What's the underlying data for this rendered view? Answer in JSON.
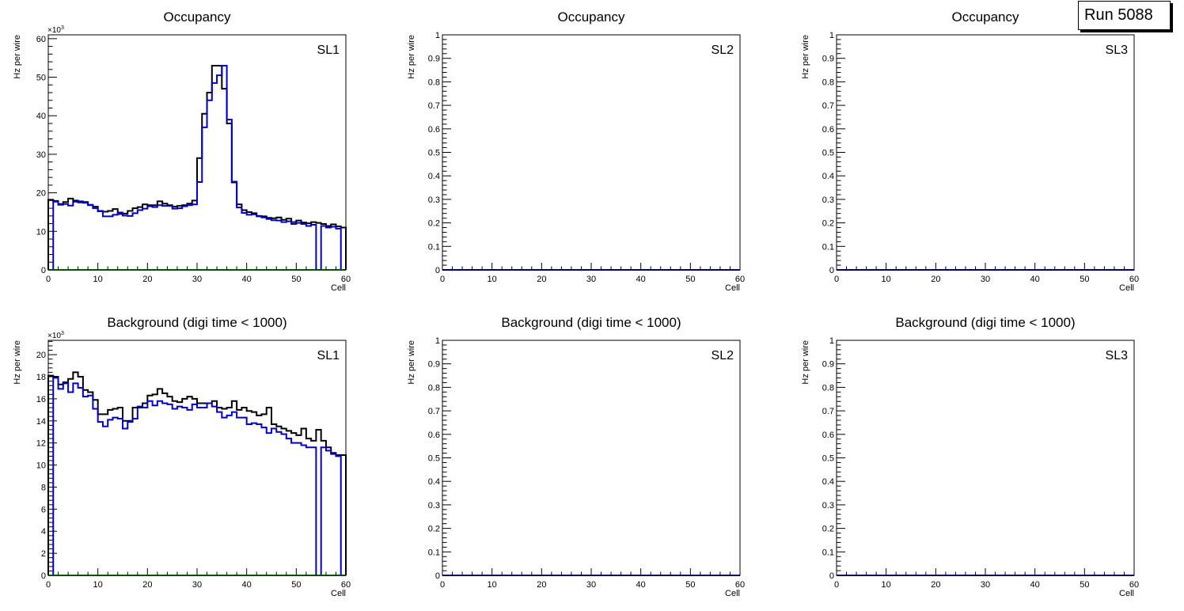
{
  "run_label": "Run 5088",
  "colors": {
    "series1": "#000000",
    "series2": "#0000cc",
    "series3": "#00aa00",
    "frame": "#000000"
  },
  "chart_data": [
    {
      "type": "step",
      "title": "Occupancy",
      "label": "SL1",
      "xlabel": "Cell",
      "ylabel": "Hz per wire",
      "xlim": [
        0,
        60
      ],
      "ylim": [
        0,
        61
      ],
      "ymultiplier": "×10",
      "ymultiplier_exp": "3",
      "xticks": [
        "0",
        "10",
        "20",
        "30",
        "40",
        "50",
        "60"
      ],
      "yticks": [
        0,
        10,
        20,
        30,
        40,
        50,
        60
      ],
      "ytick_labels": [
        "0",
        "10",
        "20",
        "30",
        "40",
        "50",
        "60"
      ],
      "series": [
        {
          "name": "series-black",
          "values": [
            18.2,
            17.9,
            17.1,
            17.6,
            18.5,
            18,
            17.5,
            17.6,
            16.8,
            16.4,
            15.2,
            15.1,
            15.3,
            15.8,
            14.5,
            14.6,
            15.3,
            16,
            16.3,
            17,
            16.8,
            16.8,
            17.8,
            17.2,
            16.8,
            16.4,
            16.6,
            16.8,
            17.2,
            18,
            29,
            40.5,
            46,
            53,
            53,
            47,
            38,
            22.7,
            17,
            15.5,
            15,
            14.7,
            14,
            13.9,
            13.5,
            13.4,
            13.6,
            13,
            13.3,
            12.4,
            12.8,
            12.3,
            12.1,
            12.4,
            12.2,
            11.9,
            11.4,
            11.8,
            11.3,
            11
          ]
        },
        {
          "name": "series-blue",
          "values": [
            0,
            17.7,
            16.9,
            17.1,
            16.7,
            17.7,
            17.8,
            17.4,
            16.9,
            16,
            15.3,
            13.9,
            13.9,
            14.3,
            14.9,
            14.1,
            14,
            14.7,
            15.5,
            15.9,
            16.5,
            16.3,
            16.8,
            16.6,
            16.6,
            15.9,
            16,
            16.5,
            16.8,
            17,
            22.8,
            37,
            44,
            48.5,
            50.5,
            53,
            39,
            22.9,
            16.2,
            14.8,
            14.3,
            14.4,
            13.9,
            13.6,
            13.2,
            12.9,
            12.8,
            12.4,
            12.6,
            11.9,
            12.2,
            11.9,
            11.4,
            11.7,
            0,
            11.4,
            11,
            11.2,
            10.7,
            0
          ]
        },
        {
          "name": "series-green",
          "values": [
            0,
            0,
            0,
            0,
            0,
            0,
            0,
            0,
            0,
            0,
            0,
            0,
            0,
            0,
            0,
            0,
            0,
            0,
            0,
            0,
            0,
            0,
            0,
            0,
            0,
            0,
            0,
            0,
            0,
            0,
            0,
            0,
            0,
            0,
            0,
            0,
            0,
            0,
            0,
            0,
            0,
            0,
            0,
            0,
            0,
            0,
            0,
            0,
            0,
            0,
            0,
            0,
            0,
            0,
            0,
            0,
            0,
            0,
            0,
            0
          ]
        }
      ]
    },
    {
      "type": "step",
      "title": "Occupancy",
      "label": "SL2",
      "xlabel": "Cell",
      "ylabel": "Hz per wire",
      "xlim": [
        0,
        60
      ],
      "ylim": [
        0,
        1
      ],
      "xticks": [
        "0",
        "10",
        "20",
        "30",
        "40",
        "50",
        "60"
      ],
      "yticks": [
        0,
        0.1,
        0.2,
        0.3,
        0.4,
        0.5,
        0.6,
        0.7,
        0.8,
        0.9,
        1
      ],
      "ytick_labels": [
        "0",
        "0.1",
        "0.2",
        "0.3",
        "0.4",
        "0.5",
        "0.6",
        "0.7",
        "0.8",
        "0.9",
        "1"
      ],
      "series": [
        {
          "name": "series-blue",
          "values": [
            0,
            0,
            0,
            0,
            0,
            0,
            0,
            0,
            0,
            0,
            0,
            0,
            0,
            0,
            0,
            0,
            0,
            0,
            0,
            0,
            0,
            0,
            0,
            0,
            0,
            0,
            0,
            0,
            0,
            0,
            0,
            0,
            0,
            0,
            0,
            0,
            0,
            0,
            0,
            0,
            0,
            0,
            0,
            0,
            0,
            0,
            0,
            0,
            0,
            0,
            0,
            0,
            0,
            0,
            0,
            0,
            0,
            0,
            0,
            0
          ]
        }
      ]
    },
    {
      "type": "step",
      "title": "Occupancy",
      "label": "SL3",
      "xlabel": "Cell",
      "ylabel": "Hz per wire",
      "xlim": [
        0,
        60
      ],
      "ylim": [
        0,
        1
      ],
      "xticks": [
        "0",
        "10",
        "20",
        "30",
        "40",
        "50",
        "60"
      ],
      "yticks": [
        0,
        0.1,
        0.2,
        0.3,
        0.4,
        0.5,
        0.6,
        0.7,
        0.8,
        0.9,
        1
      ],
      "ytick_labels": [
        "0",
        "0.1",
        "0.2",
        "0.3",
        "0.4",
        "0.5",
        "0.6",
        "0.7",
        "0.8",
        "0.9",
        "1"
      ],
      "series": [
        {
          "name": "series-blue",
          "values": [
            0,
            0,
            0,
            0,
            0,
            0,
            0,
            0,
            0,
            0,
            0,
            0,
            0,
            0,
            0,
            0,
            0,
            0,
            0,
            0,
            0,
            0,
            0,
            0,
            0,
            0,
            0,
            0,
            0,
            0,
            0,
            0,
            0,
            0,
            0,
            0,
            0,
            0,
            0,
            0,
            0,
            0,
            0,
            0,
            0,
            0,
            0,
            0,
            0,
            0,
            0,
            0,
            0,
            0,
            0,
            0,
            0,
            0,
            0,
            0
          ]
        }
      ]
    },
    {
      "type": "step",
      "title": "Background (digi time < 1000)",
      "label": "SL1",
      "xlabel": "Cell",
      "ylabel": "Hz per wire",
      "xlim": [
        0,
        60
      ],
      "ylim": [
        0,
        21.3
      ],
      "ymultiplier": "×10",
      "ymultiplier_exp": "3",
      "xticks": [
        "0",
        "10",
        "20",
        "30",
        "40",
        "50",
        "60"
      ],
      "yticks": [
        0,
        2,
        4,
        6,
        8,
        10,
        12,
        14,
        16,
        18,
        20
      ],
      "ytick_labels": [
        "0",
        "2",
        "4",
        "6",
        "8",
        "10",
        "12",
        "14",
        "16",
        "18",
        "20"
      ],
      "series": [
        {
          "name": "series-black",
          "values": [
            18.1,
            18,
            17.3,
            17.5,
            17.8,
            18.4,
            18,
            16.8,
            16.6,
            15.9,
            14.6,
            14.6,
            15,
            15.1,
            15.2,
            14,
            14,
            15.2,
            15.2,
            15.6,
            16.3,
            16.4,
            16.9,
            16.5,
            16.2,
            15.8,
            15.7,
            16,
            16.2,
            16,
            15.6,
            15.6,
            15.6,
            15.8,
            15.2,
            15.1,
            15.2,
            15.8,
            15,
            15.2,
            14.9,
            14.8,
            14.5,
            14.6,
            15.2,
            13.7,
            13.5,
            13.3,
            13.1,
            12.9,
            12.7,
            13.3,
            12.4,
            12.2,
            13.2,
            12.2,
            11.6,
            11.1,
            10.9,
            10.9
          ]
        },
        {
          "name": "series-blue",
          "values": [
            0,
            17.9,
            16.9,
            17.4,
            16.6,
            17.4,
            17,
            16.2,
            16.3,
            15.1,
            13.9,
            13.5,
            14.1,
            14.3,
            14.2,
            13.3,
            13.9,
            14.2,
            15.3,
            15.2,
            15.8,
            15.4,
            15.8,
            15.6,
            15.5,
            15.1,
            15.3,
            15.2,
            15,
            15.5,
            15.2,
            15.2,
            15.6,
            15.3,
            14.8,
            14.3,
            14.5,
            14.8,
            14.3,
            14.3,
            13.7,
            13.8,
            13.7,
            13.4,
            12.9,
            13.3,
            13,
            12.8,
            12.4,
            12,
            12,
            11.8,
            11.6,
            11.6,
            0,
            11.6,
            11.3,
            11,
            10.8,
            0
          ]
        },
        {
          "name": "series-green",
          "values": [
            0,
            0,
            0,
            0,
            0,
            0,
            0,
            0,
            0,
            0,
            0,
            0,
            0,
            0,
            0,
            0,
            0,
            0,
            0,
            0,
            0,
            0,
            0,
            0,
            0,
            0,
            0,
            0,
            0,
            0,
            0,
            0,
            0,
            0,
            0,
            0,
            0,
            0,
            0,
            0,
            0,
            0,
            0,
            0,
            0,
            0,
            0,
            0,
            0,
            0,
            0,
            0,
            0,
            0,
            0,
            0,
            0,
            0,
            0,
            0
          ]
        }
      ]
    },
    {
      "type": "step",
      "title": "Background (digi time < 1000)",
      "label": "SL2",
      "xlabel": "Cell",
      "ylabel": "Hz per wire",
      "xlim": [
        0,
        60
      ],
      "ylim": [
        0,
        1
      ],
      "xticks": [
        "0",
        "10",
        "20",
        "30",
        "40",
        "50",
        "60"
      ],
      "yticks": [
        0,
        0.1,
        0.2,
        0.3,
        0.4,
        0.5,
        0.6,
        0.7,
        0.8,
        0.9,
        1
      ],
      "ytick_labels": [
        "0",
        "0.1",
        "0.2",
        "0.3",
        "0.4",
        "0.5",
        "0.6",
        "0.7",
        "0.8",
        "0.9",
        "1"
      ],
      "series": [
        {
          "name": "series-blue",
          "values": [
            0,
            0,
            0,
            0,
            0,
            0,
            0,
            0,
            0,
            0,
            0,
            0,
            0,
            0,
            0,
            0,
            0,
            0,
            0,
            0,
            0,
            0,
            0,
            0,
            0,
            0,
            0,
            0,
            0,
            0,
            0,
            0,
            0,
            0,
            0,
            0,
            0,
            0,
            0,
            0,
            0,
            0,
            0,
            0,
            0,
            0,
            0,
            0,
            0,
            0,
            0,
            0,
            0,
            0,
            0,
            0,
            0,
            0,
            0,
            0
          ]
        }
      ]
    },
    {
      "type": "step",
      "title": "Background (digi time < 1000)",
      "label": "SL3",
      "xlabel": "Cell",
      "ylabel": "Hz per wire",
      "xlim": [
        0,
        60
      ],
      "ylim": [
        0,
        1
      ],
      "xticks": [
        "0",
        "10",
        "20",
        "30",
        "40",
        "50",
        "60"
      ],
      "yticks": [
        0,
        0.1,
        0.2,
        0.3,
        0.4,
        0.5,
        0.6,
        0.7,
        0.8,
        0.9,
        1
      ],
      "ytick_labels": [
        "0",
        "0.1",
        "0.2",
        "0.3",
        "0.4",
        "0.5",
        "0.6",
        "0.7",
        "0.8",
        "0.9",
        "1"
      ],
      "series": [
        {
          "name": "series-blue",
          "values": [
            0,
            0,
            0,
            0,
            0,
            0,
            0,
            0,
            0,
            0,
            0,
            0,
            0,
            0,
            0,
            0,
            0,
            0,
            0,
            0,
            0,
            0,
            0,
            0,
            0,
            0,
            0,
            0,
            0,
            0,
            0,
            0,
            0,
            0,
            0,
            0,
            0,
            0,
            0,
            0,
            0,
            0,
            0,
            0,
            0,
            0,
            0,
            0,
            0,
            0,
            0,
            0,
            0,
            0,
            0,
            0,
            0,
            0,
            0,
            0
          ]
        }
      ]
    }
  ]
}
